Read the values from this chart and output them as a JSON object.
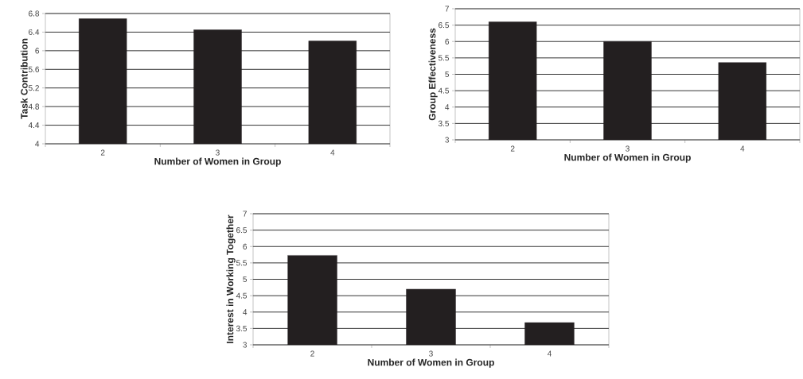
{
  "chart_data": [
    {
      "type": "bar",
      "categories": [
        "2",
        "3",
        "4"
      ],
      "values": [
        6.69,
        6.45,
        6.21
      ],
      "color": "#231f20",
      "xlabel": "Number of Women in Group",
      "ylabel": "Task Contribution",
      "ylim": [
        4,
        6.8
      ],
      "yticks": [
        4,
        4.4,
        4.8,
        5.2,
        5.6,
        6,
        6.4,
        6.8
      ],
      "grid": "y"
    },
    {
      "type": "bar",
      "categories": [
        "2",
        "3",
        "4"
      ],
      "values": [
        6.6,
        6.0,
        5.36
      ],
      "color": "#231f20",
      "xlabel": "Number of Women in Group",
      "ylabel": "Group Effectiveness",
      "ylim": [
        3,
        7
      ],
      "yticks": [
        3,
        3.5,
        4,
        4.5,
        5,
        5.5,
        6,
        6.5,
        7
      ],
      "grid": "y"
    },
    {
      "type": "bar",
      "categories": [
        "2",
        "3",
        "4"
      ],
      "values": [
        5.73,
        4.7,
        3.68
      ],
      "color": "#231f20",
      "xlabel": "Number of Women in Group",
      "ylabel": "Interest in Working Together",
      "ylim": [
        3,
        7
      ],
      "yticks": [
        3,
        3.5,
        4,
        4.5,
        5,
        5.5,
        6,
        6.5,
        7
      ],
      "grid": "y"
    }
  ]
}
